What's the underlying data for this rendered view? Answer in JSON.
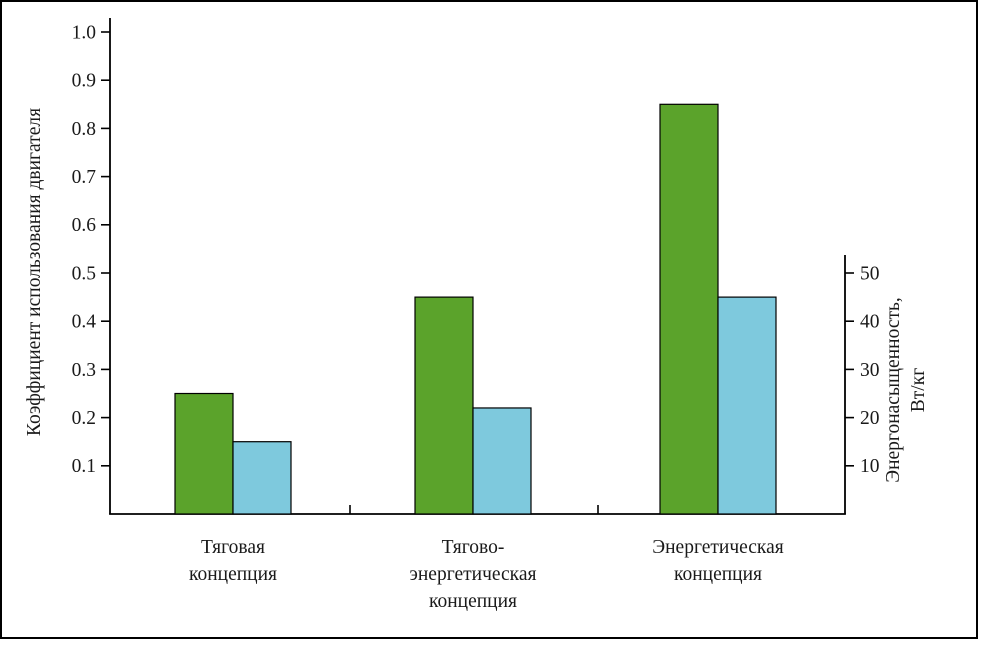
{
  "figure": {
    "background": "#ffffff",
    "frame_color": "#000000",
    "axis_color": "#000000"
  },
  "chart_data": {
    "type": "bar",
    "title": "",
    "categories": [
      "Тяговая концепция",
      "Тягово-энергетическая концепция",
      "Энергетическая концепция"
    ],
    "category_label_lines": [
      [
        "Тяговая",
        "концепция"
      ],
      [
        "Тягово-",
        "энергетическая",
        "концепция"
      ],
      [
        "Энергетическая",
        "концепция"
      ]
    ],
    "series": [
      {
        "name": "Коэффициент использования двигателя",
        "axis": "left",
        "color": "#5ba32b",
        "stroke": "#000000",
        "values": [
          0.25,
          0.45,
          0.85
        ]
      },
      {
        "name": "Энергонасыщенность, Вт/кг",
        "axis": "right",
        "color": "#7ec9dd",
        "stroke": "#000000",
        "values": [
          15,
          22,
          45
        ]
      }
    ],
    "left_axis": {
      "label": "Коэффициент использования двигателя",
      "ticks": [
        1.0,
        0.9,
        0.8,
        0.7,
        0.6,
        0.5,
        0.4,
        0.3,
        0.2,
        0.1
      ],
      "range": [
        0,
        1.0
      ]
    },
    "right_axis": {
      "label": "Энергонасыщенность, Вт/кг",
      "label_lines": [
        "Энергонасыщенность,",
        "Вт/кг"
      ],
      "ticks": [
        50,
        40,
        30,
        20,
        10
      ],
      "range": [
        0,
        50
      ]
    },
    "grid": false,
    "legend": false
  }
}
